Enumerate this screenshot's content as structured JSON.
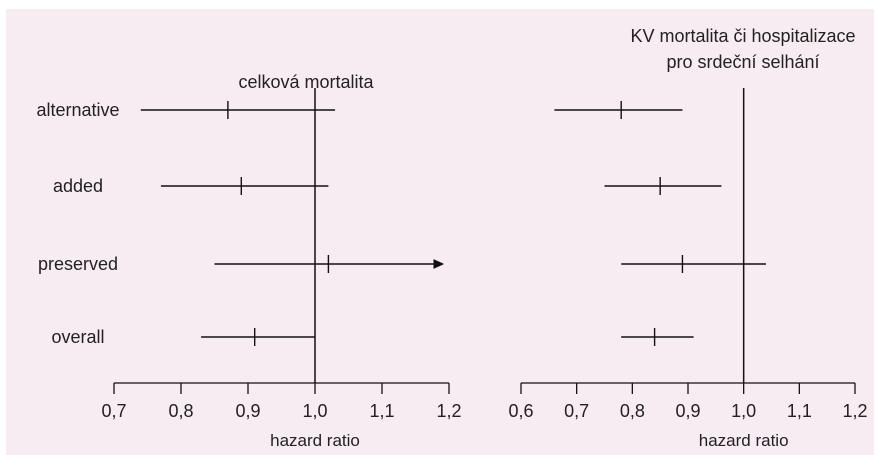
{
  "chart_data": [
    {
      "type": "forest",
      "title": "celková mortalita",
      "xlabel": "hazard ratio",
      "xlim": [
        0.7,
        1.2
      ],
      "xticks": [
        "0,7",
        "0,8",
        "0,9",
        "1,0",
        "1,1",
        "1,2"
      ],
      "tick_values": [
        0.7,
        0.8,
        0.9,
        1.0,
        1.1,
        1.2
      ],
      "reference_line": 1.0,
      "categories": [
        "alternative",
        "added",
        "preserved",
        "overall"
      ],
      "points": [
        {
          "category": "alternative",
          "estimate": 0.87,
          "lower": 0.74,
          "upper": 1.03,
          "arrow": false
        },
        {
          "category": "added",
          "estimate": 0.89,
          "lower": 0.77,
          "upper": 1.02,
          "arrow": false
        },
        {
          "category": "preserved",
          "estimate": 1.02,
          "lower": 0.85,
          "upper": 1.19,
          "arrow": true
        },
        {
          "category": "overall",
          "estimate": 0.91,
          "lower": 0.83,
          "upper": 1.0,
          "arrow": false
        }
      ]
    },
    {
      "type": "forest",
      "title": "KV mortalita či hospitalizace pro srdeční selhání",
      "title_lines": [
        "KV mortalita či hospitalizace",
        "pro srdeční selhání"
      ],
      "xlabel": "hazard ratio",
      "xlim": [
        0.6,
        1.2
      ],
      "xticks": [
        "0,6",
        "0,7",
        "0,8",
        "0,9",
        "1,0",
        "1,1",
        "1,2"
      ],
      "tick_values": [
        0.6,
        0.7,
        0.8,
        0.9,
        1.0,
        1.1,
        1.2
      ],
      "reference_line": 1.0,
      "categories": [
        "alternative",
        "added",
        "preserved",
        "overall"
      ],
      "points": [
        {
          "category": "alternative",
          "estimate": 0.78,
          "lower": 0.66,
          "upper": 0.89,
          "arrow": false
        },
        {
          "category": "added",
          "estimate": 0.85,
          "lower": 0.75,
          "upper": 0.96,
          "arrow": false
        },
        {
          "category": "preserved",
          "estimate": 0.89,
          "lower": 0.78,
          "upper": 1.04,
          "arrow": false
        },
        {
          "category": "overall",
          "estimate": 0.84,
          "lower": 0.78,
          "upper": 0.91,
          "arrow": false
        }
      ]
    }
  ],
  "colors": {
    "background": "#f7ecf1",
    "ink": "#111111"
  }
}
